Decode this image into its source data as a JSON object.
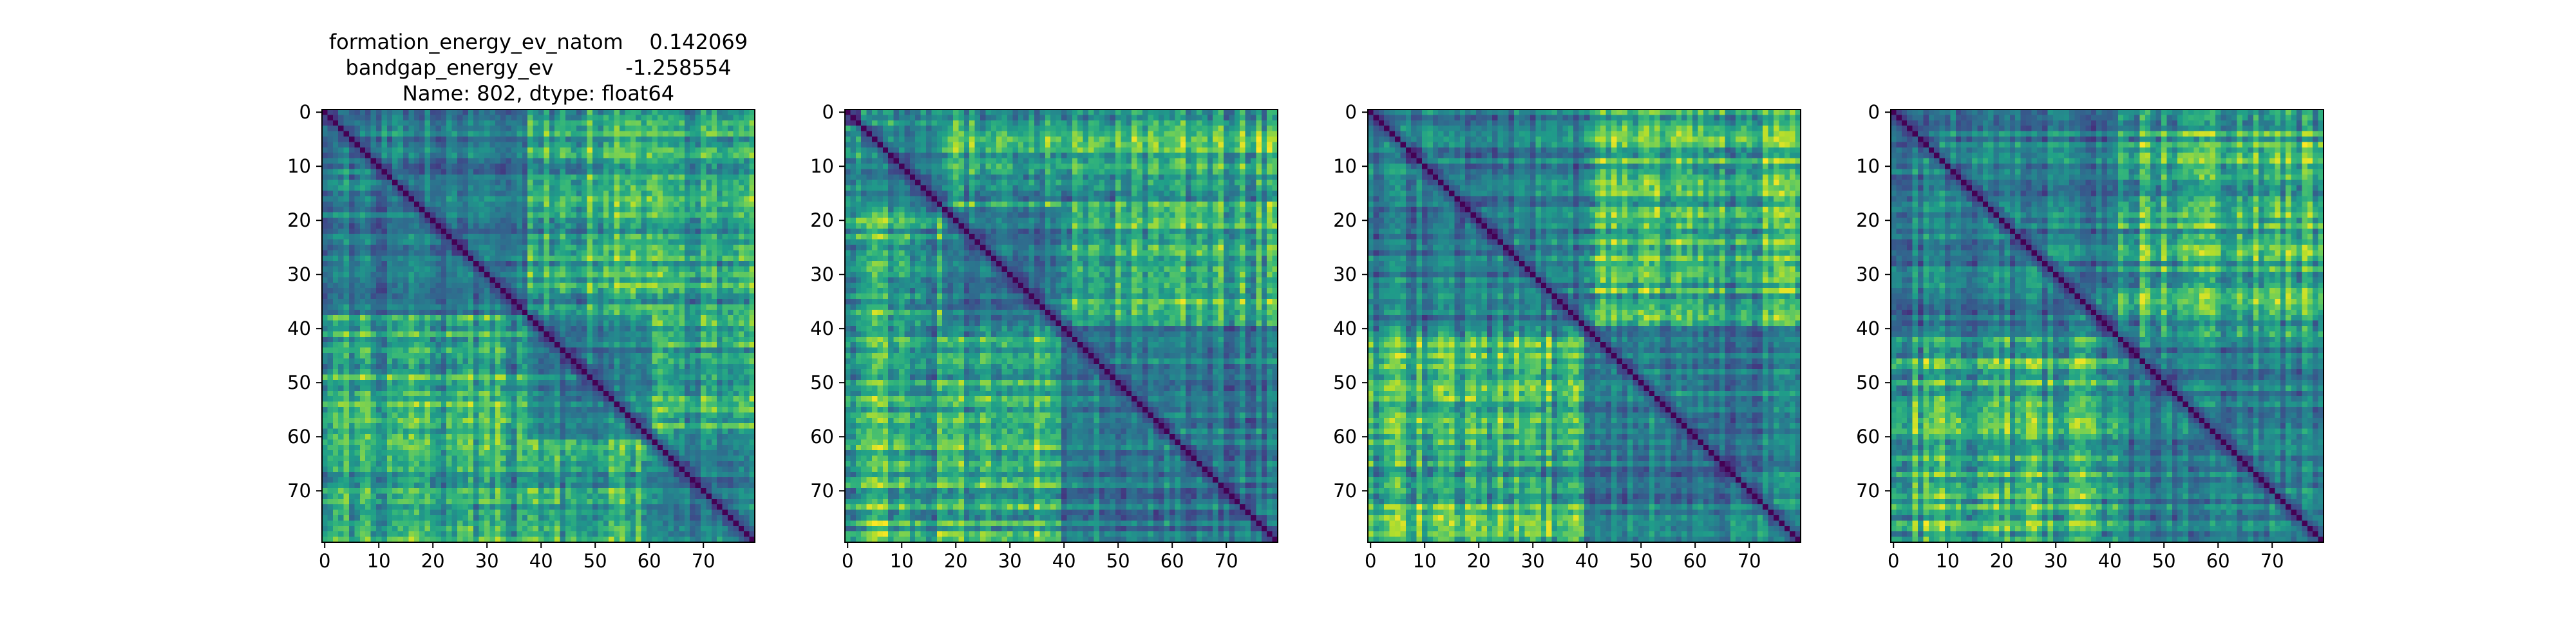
{
  "chart_data": [
    {
      "type": "heatmap",
      "title_lines": [
        "formation_energy_ev_natom    0.142069",
        "bandgap_energy_ev           -1.258554",
        "Name: 802, dtype: float64"
      ],
      "matrix_size": 80,
      "colormap": "viridis",
      "diagonal_value": 0,
      "block_boundaries": [
        38,
        61
      ],
      "seed": 802,
      "x_ticks": [
        0,
        10,
        20,
        30,
        40,
        50,
        60,
        70
      ],
      "y_ticks": [
        0,
        10,
        20,
        30,
        40,
        50,
        60,
        70
      ],
      "xlim": [
        0,
        79
      ],
      "ylim": [
        79,
        0
      ]
    },
    {
      "type": "heatmap",
      "title_lines": [],
      "matrix_size": 80,
      "colormap": "viridis",
      "diagonal_value": 0,
      "block_boundaries": [
        3,
        18,
        40
      ],
      "seed": 1907,
      "x_ticks": [
        0,
        10,
        20,
        30,
        40,
        50,
        60,
        70
      ],
      "y_ticks": [
        0,
        10,
        20,
        30,
        40,
        50,
        60,
        70
      ],
      "xlim": [
        0,
        79
      ],
      "ylim": [
        79,
        0
      ]
    },
    {
      "type": "heatmap",
      "title_lines": [],
      "matrix_size": 80,
      "colormap": "viridis",
      "diagonal_value": 0,
      "block_boundaries": [
        40
      ],
      "seed": 3311,
      "x_ticks": [
        0,
        10,
        20,
        30,
        40,
        50,
        60,
        70
      ],
      "y_ticks": [
        0,
        10,
        20,
        30,
        40,
        50,
        60,
        70
      ],
      "xlim": [
        0,
        79
      ],
      "ylim": [
        79,
        0
      ]
    },
    {
      "type": "heatmap",
      "title_lines": [],
      "matrix_size": 80,
      "colormap": "viridis",
      "diagonal_value": 0,
      "block_boundaries": [
        42
      ],
      "seed": 4523,
      "x_ticks": [
        0,
        10,
        20,
        30,
        40,
        50,
        60,
        70
      ],
      "y_ticks": [
        0,
        10,
        20,
        30,
        40,
        50,
        60,
        70
      ],
      "xlim": [
        0,
        79
      ],
      "ylim": [
        79,
        0
      ]
    }
  ]
}
